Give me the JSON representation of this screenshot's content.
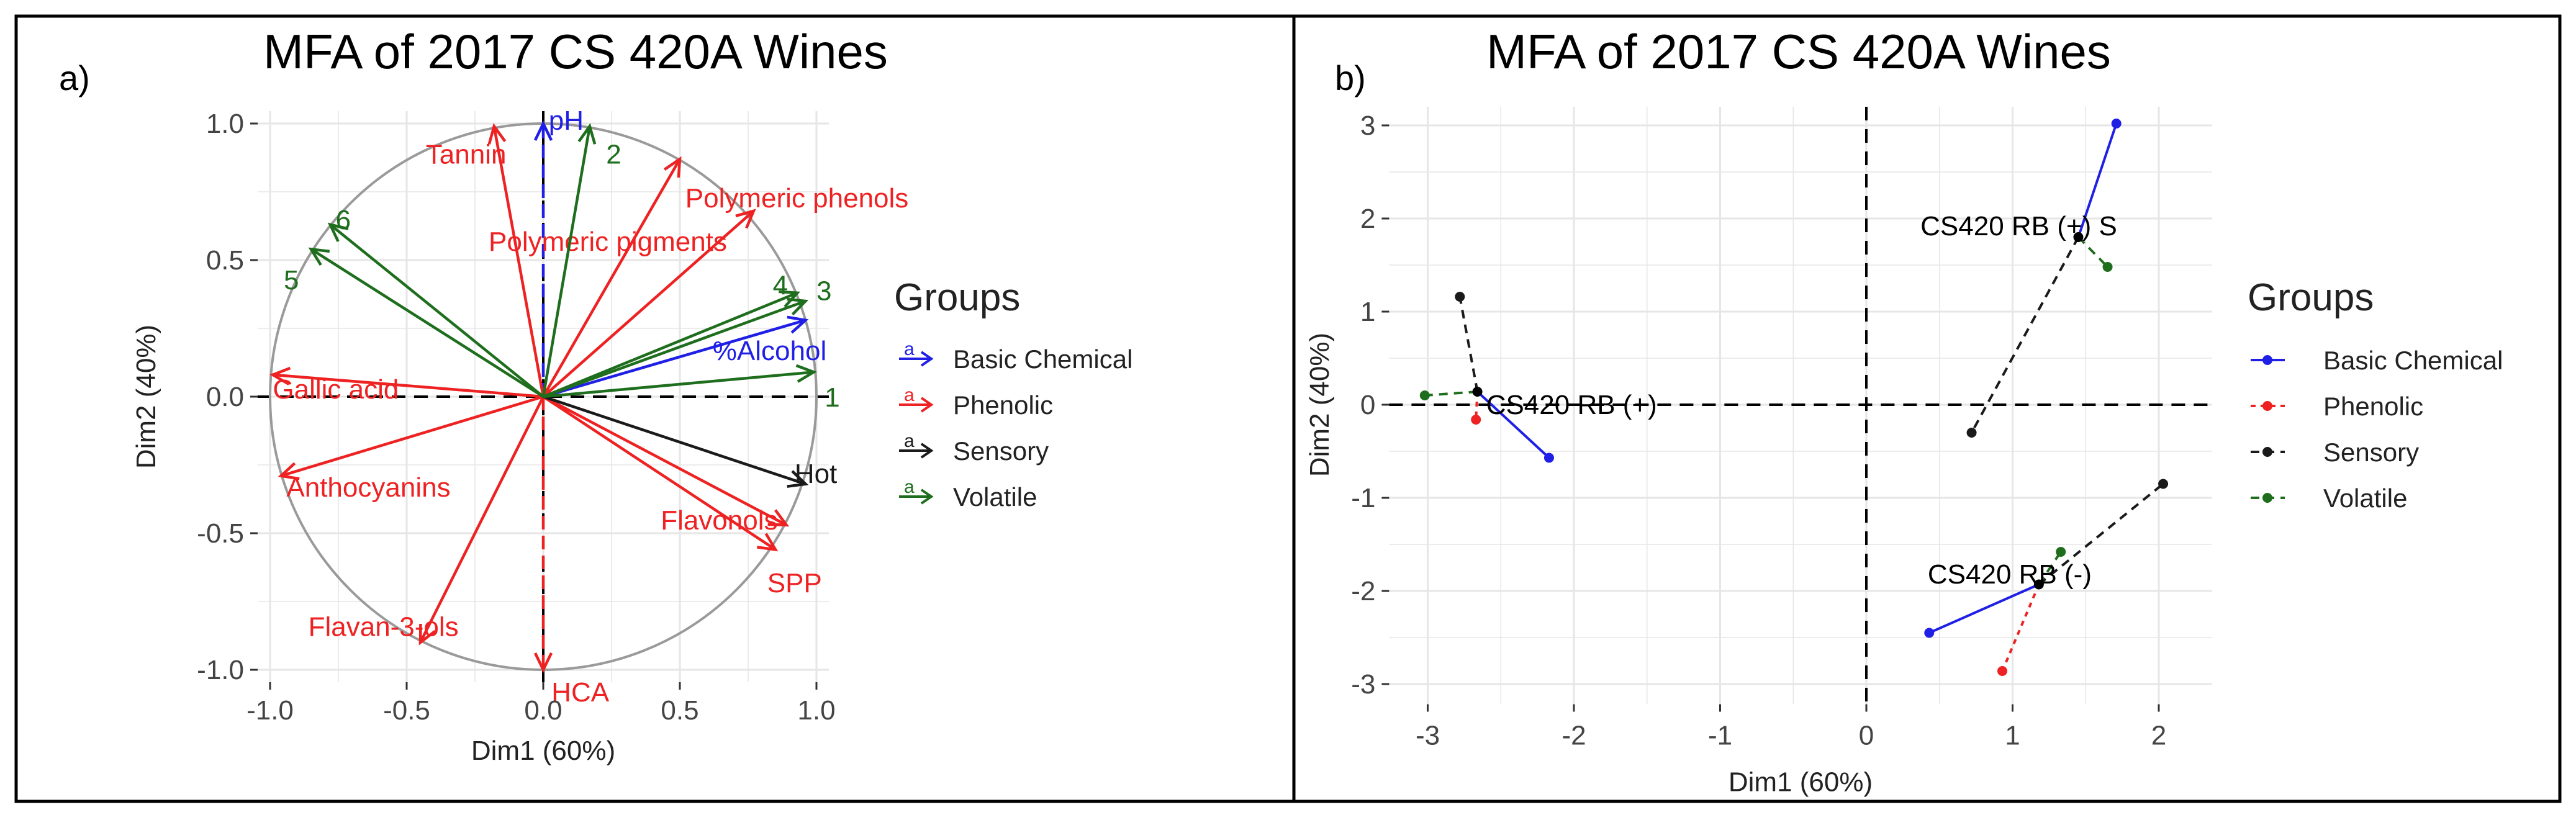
{
  "panels": {
    "a": {
      "label": "a)"
    },
    "b": {
      "label": "b)"
    }
  },
  "legend": {
    "title": "Groups",
    "groups": [
      {
        "name": "Basic Chemical",
        "color": "#1f1fe6"
      },
      {
        "name": "Phenolic",
        "color": "#ee2222"
      },
      {
        "name": "Sensory",
        "color": "#1a1a1a"
      },
      {
        "name": "Volatile",
        "color": "#1e6e1e"
      }
    ]
  },
  "chart_data": [
    {
      "type": "scatter",
      "subtype": "correlation-circle",
      "title": "MFA of 2017 CS 420A Wines",
      "xlabel": "Dim1 (60%)",
      "ylabel": "Dim2 (40%)",
      "xlim": [
        -1.0,
        1.0
      ],
      "ylim": [
        -1.0,
        1.0
      ],
      "xticks": [
        "-1.0",
        "-0.5",
        "0.0",
        "0.5",
        "1.0"
      ],
      "yticks": [
        "-1.0",
        "-0.5",
        "0.0",
        "0.5",
        "1.0"
      ],
      "grid": true,
      "legend_position": "right",
      "vectors": [
        {
          "name": "pH",
          "group": "Basic Chemical",
          "x": 0.0,
          "y": 1.0
        },
        {
          "name": "%Alcohol",
          "group": "Basic Chemical",
          "x": 0.96,
          "y": 0.28
        },
        {
          "name": "Tannin",
          "group": "Phenolic",
          "x": -0.18,
          "y": 0.99
        },
        {
          "name": "Polymeric phenols",
          "group": "Phenolic",
          "x": 0.5,
          "y": 0.87
        },
        {
          "name": "Polymeric pigments",
          "group": "Phenolic",
          "x": 0.77,
          "y": 0.68
        },
        {
          "name": "Gallic acid",
          "group": "Phenolic",
          "x": -0.99,
          "y": 0.08
        },
        {
          "name": "Anthocyanins",
          "group": "Phenolic",
          "x": -0.96,
          "y": -0.29
        },
        {
          "name": "Flavonols",
          "group": "Phenolic",
          "x": 0.89,
          "y": -0.47
        },
        {
          "name": "SPP",
          "group": "Phenolic",
          "x": 0.85,
          "y": -0.56
        },
        {
          "name": "Flavan-3-ols",
          "group": "Phenolic",
          "x": -0.45,
          "y": -0.9
        },
        {
          "name": "HCA",
          "group": "Phenolic",
          "x": 0.0,
          "y": -1.0
        },
        {
          "name": "Hot",
          "group": "Sensory",
          "x": 0.96,
          "y": -0.32
        },
        {
          "name": "2",
          "group": "Volatile",
          "x": 0.17,
          "y": 0.99
        },
        {
          "name": "6",
          "group": "Volatile",
          "x": -0.78,
          "y": 0.63
        },
        {
          "name": "5",
          "group": "Volatile",
          "x": -0.85,
          "y": 0.54
        },
        {
          "name": "4",
          "group": "Volatile",
          "x": 0.93,
          "y": 0.38
        },
        {
          "name": "3",
          "group": "Volatile",
          "x": 0.96,
          "y": 0.35
        },
        {
          "name": "1",
          "group": "Volatile",
          "x": 0.99,
          "y": 0.09
        }
      ]
    },
    {
      "type": "scatter",
      "subtype": "partial-individuals",
      "title": "MFA of 2017 CS 420A Wines",
      "xlabel": "Dim1 (60%)",
      "ylabel": "Dim2 (40%)",
      "xlim": [
        -3.2,
        2.3
      ],
      "ylim": [
        -3.15,
        3.2
      ],
      "xticks": [
        "-3",
        "-2",
        "-1",
        "0",
        "1",
        "2"
      ],
      "yticks": [
        "-3",
        "-2",
        "-1",
        "0",
        "1",
        "2",
        "3"
      ],
      "grid": true,
      "legend_position": "right",
      "individuals": [
        {
          "name": "CS420 RB (+)",
          "x": -2.66,
          "y": 0.14,
          "partials": [
            {
              "group": "Basic Chemical",
              "x": -2.17,
              "y": -0.57
            },
            {
              "group": "Phenolic",
              "x": -2.67,
              "y": -0.16
            },
            {
              "group": "Sensory",
              "x": -2.78,
              "y": 1.16
            },
            {
              "group": "Volatile",
              "x": -3.02,
              "y": 0.1
            }
          ]
        },
        {
          "name": "CS420 RB (+) S",
          "x": 1.45,
          "y": 1.8,
          "partials": [
            {
              "group": "Basic Chemical",
              "x": 1.71,
              "y": 3.02
            },
            {
              "group": "Sensory",
              "x": 0.72,
              "y": -0.3
            },
            {
              "group": "Volatile",
              "x": 1.65,
              "y": 1.48
            }
          ]
        },
        {
          "name": "CS420 RB (-)",
          "x": 1.18,
          "y": -1.93,
          "partials": [
            {
              "group": "Basic Chemical",
              "x": 0.43,
              "y": -2.45
            },
            {
              "group": "Phenolic",
              "x": 0.93,
              "y": -2.86
            },
            {
              "group": "Sensory",
              "x": 2.03,
              "y": -0.85
            },
            {
              "group": "Volatile",
              "x": 1.33,
              "y": -1.58
            }
          ]
        }
      ]
    }
  ]
}
